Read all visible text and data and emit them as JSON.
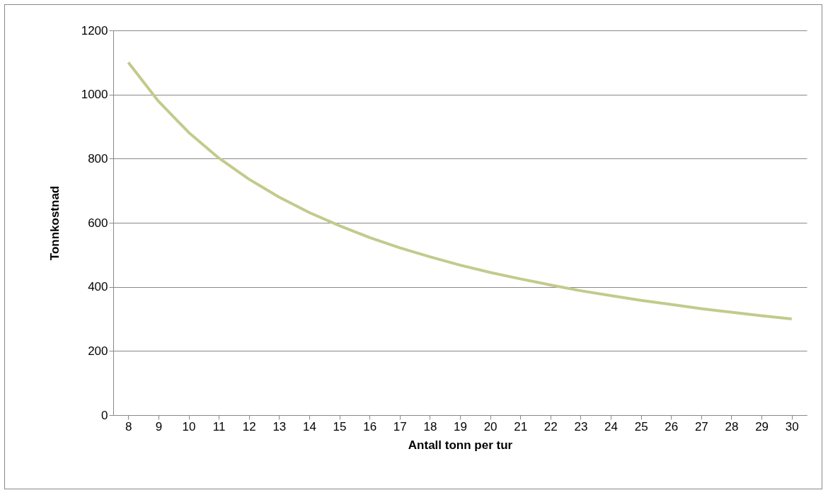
{
  "chart_data": {
    "type": "line",
    "xlabel": "Antall tonn per tur",
    "ylabel": "Tonnkostnad",
    "categories": [
      "8",
      "9",
      "10",
      "11",
      "12",
      "13",
      "14",
      "15",
      "16",
      "17",
      "18",
      "19",
      "20",
      "21",
      "22",
      "23",
      "24",
      "25",
      "26",
      "27",
      "28",
      "29",
      "30"
    ],
    "series": [
      {
        "color": "#c3ca8c",
        "values": [
          1100,
          979,
          882,
          802,
          736,
          680,
          632,
          591,
          554,
          522,
          494,
          468,
          445,
          425,
          406,
          388,
          373,
          358,
          345,
          332,
          321,
          310,
          300
        ]
      }
    ],
    "ylim": [
      0,
      1200
    ],
    "yticks": [
      0,
      200,
      400,
      600,
      800,
      1000,
      1200
    ],
    "grid": "y",
    "legend": false,
    "marker": "none",
    "line_style": "solid"
  }
}
